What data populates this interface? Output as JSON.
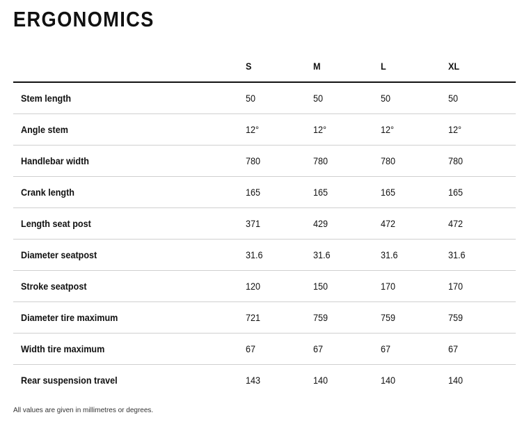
{
  "title": "ERGONOMICS",
  "table": {
    "sizes": [
      "S",
      "M",
      "L",
      "XL"
    ],
    "rows": [
      {
        "label": "Stem length",
        "values": [
          "50",
          "50",
          "50",
          "50"
        ]
      },
      {
        "label": "Angle stem",
        "values": [
          "12°",
          "12°",
          "12°",
          "12°"
        ]
      },
      {
        "label": "Handlebar width",
        "values": [
          "780",
          "780",
          "780",
          "780"
        ]
      },
      {
        "label": "Crank length",
        "values": [
          "165",
          "165",
          "165",
          "165"
        ]
      },
      {
        "label": "Length seat post",
        "values": [
          "371",
          "429",
          "472",
          "472"
        ]
      },
      {
        "label": "Diameter seatpost",
        "values": [
          "31.6",
          "31.6",
          "31.6",
          "31.6"
        ]
      },
      {
        "label": "Stroke seatpost",
        "values": [
          "120",
          "150",
          "170",
          "170"
        ]
      },
      {
        "label": "Diameter tire maximum",
        "values": [
          "721",
          "759",
          "759",
          "759"
        ]
      },
      {
        "label": "Width tire maximum",
        "values": [
          "67",
          "67",
          "67",
          "67"
        ]
      },
      {
        "label": "Rear suspension travel",
        "values": [
          "143",
          "140",
          "140",
          "140"
        ]
      }
    ]
  },
  "footnote": "All values are given in millimetres or degrees."
}
